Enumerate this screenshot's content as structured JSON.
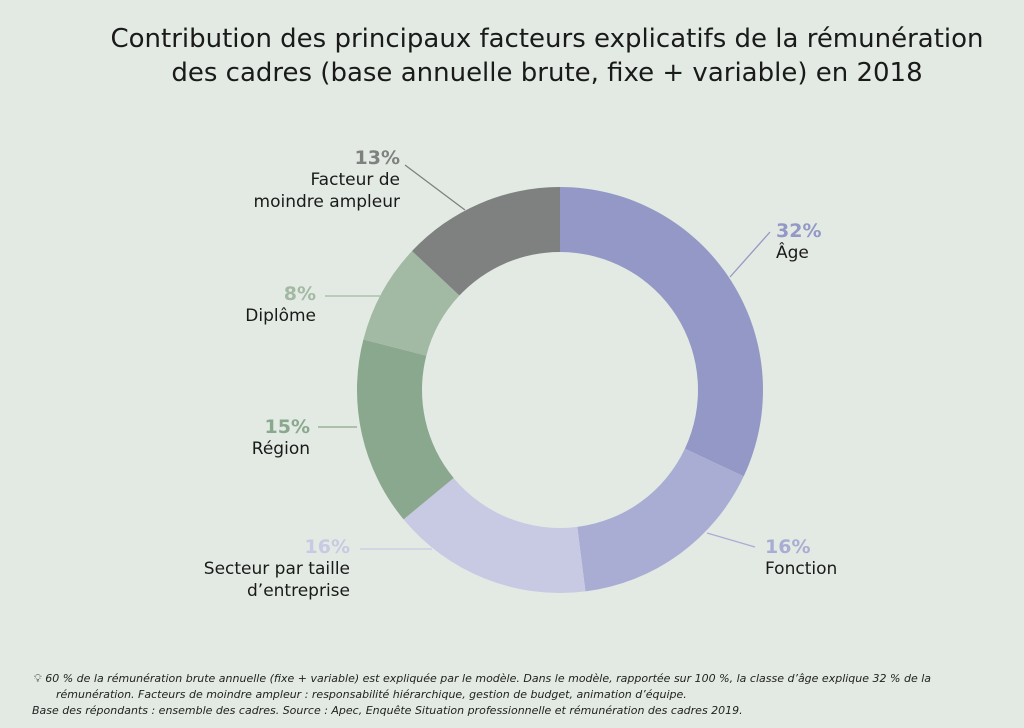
{
  "chart_data": {
    "type": "donut",
    "title_lines": [
      "Contribution des principaux facteurs explicatifs de la rémunération",
      "des cadres (base annuelle brute, fixe + variable) en 2018"
    ],
    "slices": [
      {
        "label": "Âge",
        "value": 32,
        "pct_label": "32%",
        "color": "#9498c6"
      },
      {
        "label": "Fonction",
        "value": 16,
        "pct_label": "16%",
        "color": "#a9add4"
      },
      {
        "label": "Secteur par taille d’entreprise",
        "label_lines": [
          "Secteur par taille",
          "d’entreprise"
        ],
        "value": 16,
        "pct_label": "16%",
        "color": "#c8c9e2"
      },
      {
        "label": "Région",
        "value": 15,
        "pct_label": "15%",
        "color": "#8aa88d"
      },
      {
        "label": "Diplôme",
        "value": 8,
        "pct_label": "8%",
        "color": "#a2b9a4"
      },
      {
        "label": "Facteur de moindre ampleur",
        "label_lines": [
          "Facteur de",
          "moindre ampleur"
        ],
        "value": 13,
        "pct_label": "13%",
        "color": "#7f8080"
      }
    ]
  },
  "footnote": {
    "icon": "lightbulb-icon",
    "line1": "60 % de la rémunération brute annuelle (fixe + variable) est expliquée par le modèle. Dans le modèle, rapportée sur 100 %, la classe d’âge explique 32 % de la",
    "line2": "rémunération. Facteurs de moindre ampleur : responsabilité hiérarchique, gestion de budget, animation d’équipe.",
    "source": "Base des répondants : ensemble des cadres. Source : Apec, Enquête Situation professionnelle et rémunération des cadres 2019."
  },
  "colors": {
    "background": "#e3eae3",
    "leader_line": "#888888"
  }
}
